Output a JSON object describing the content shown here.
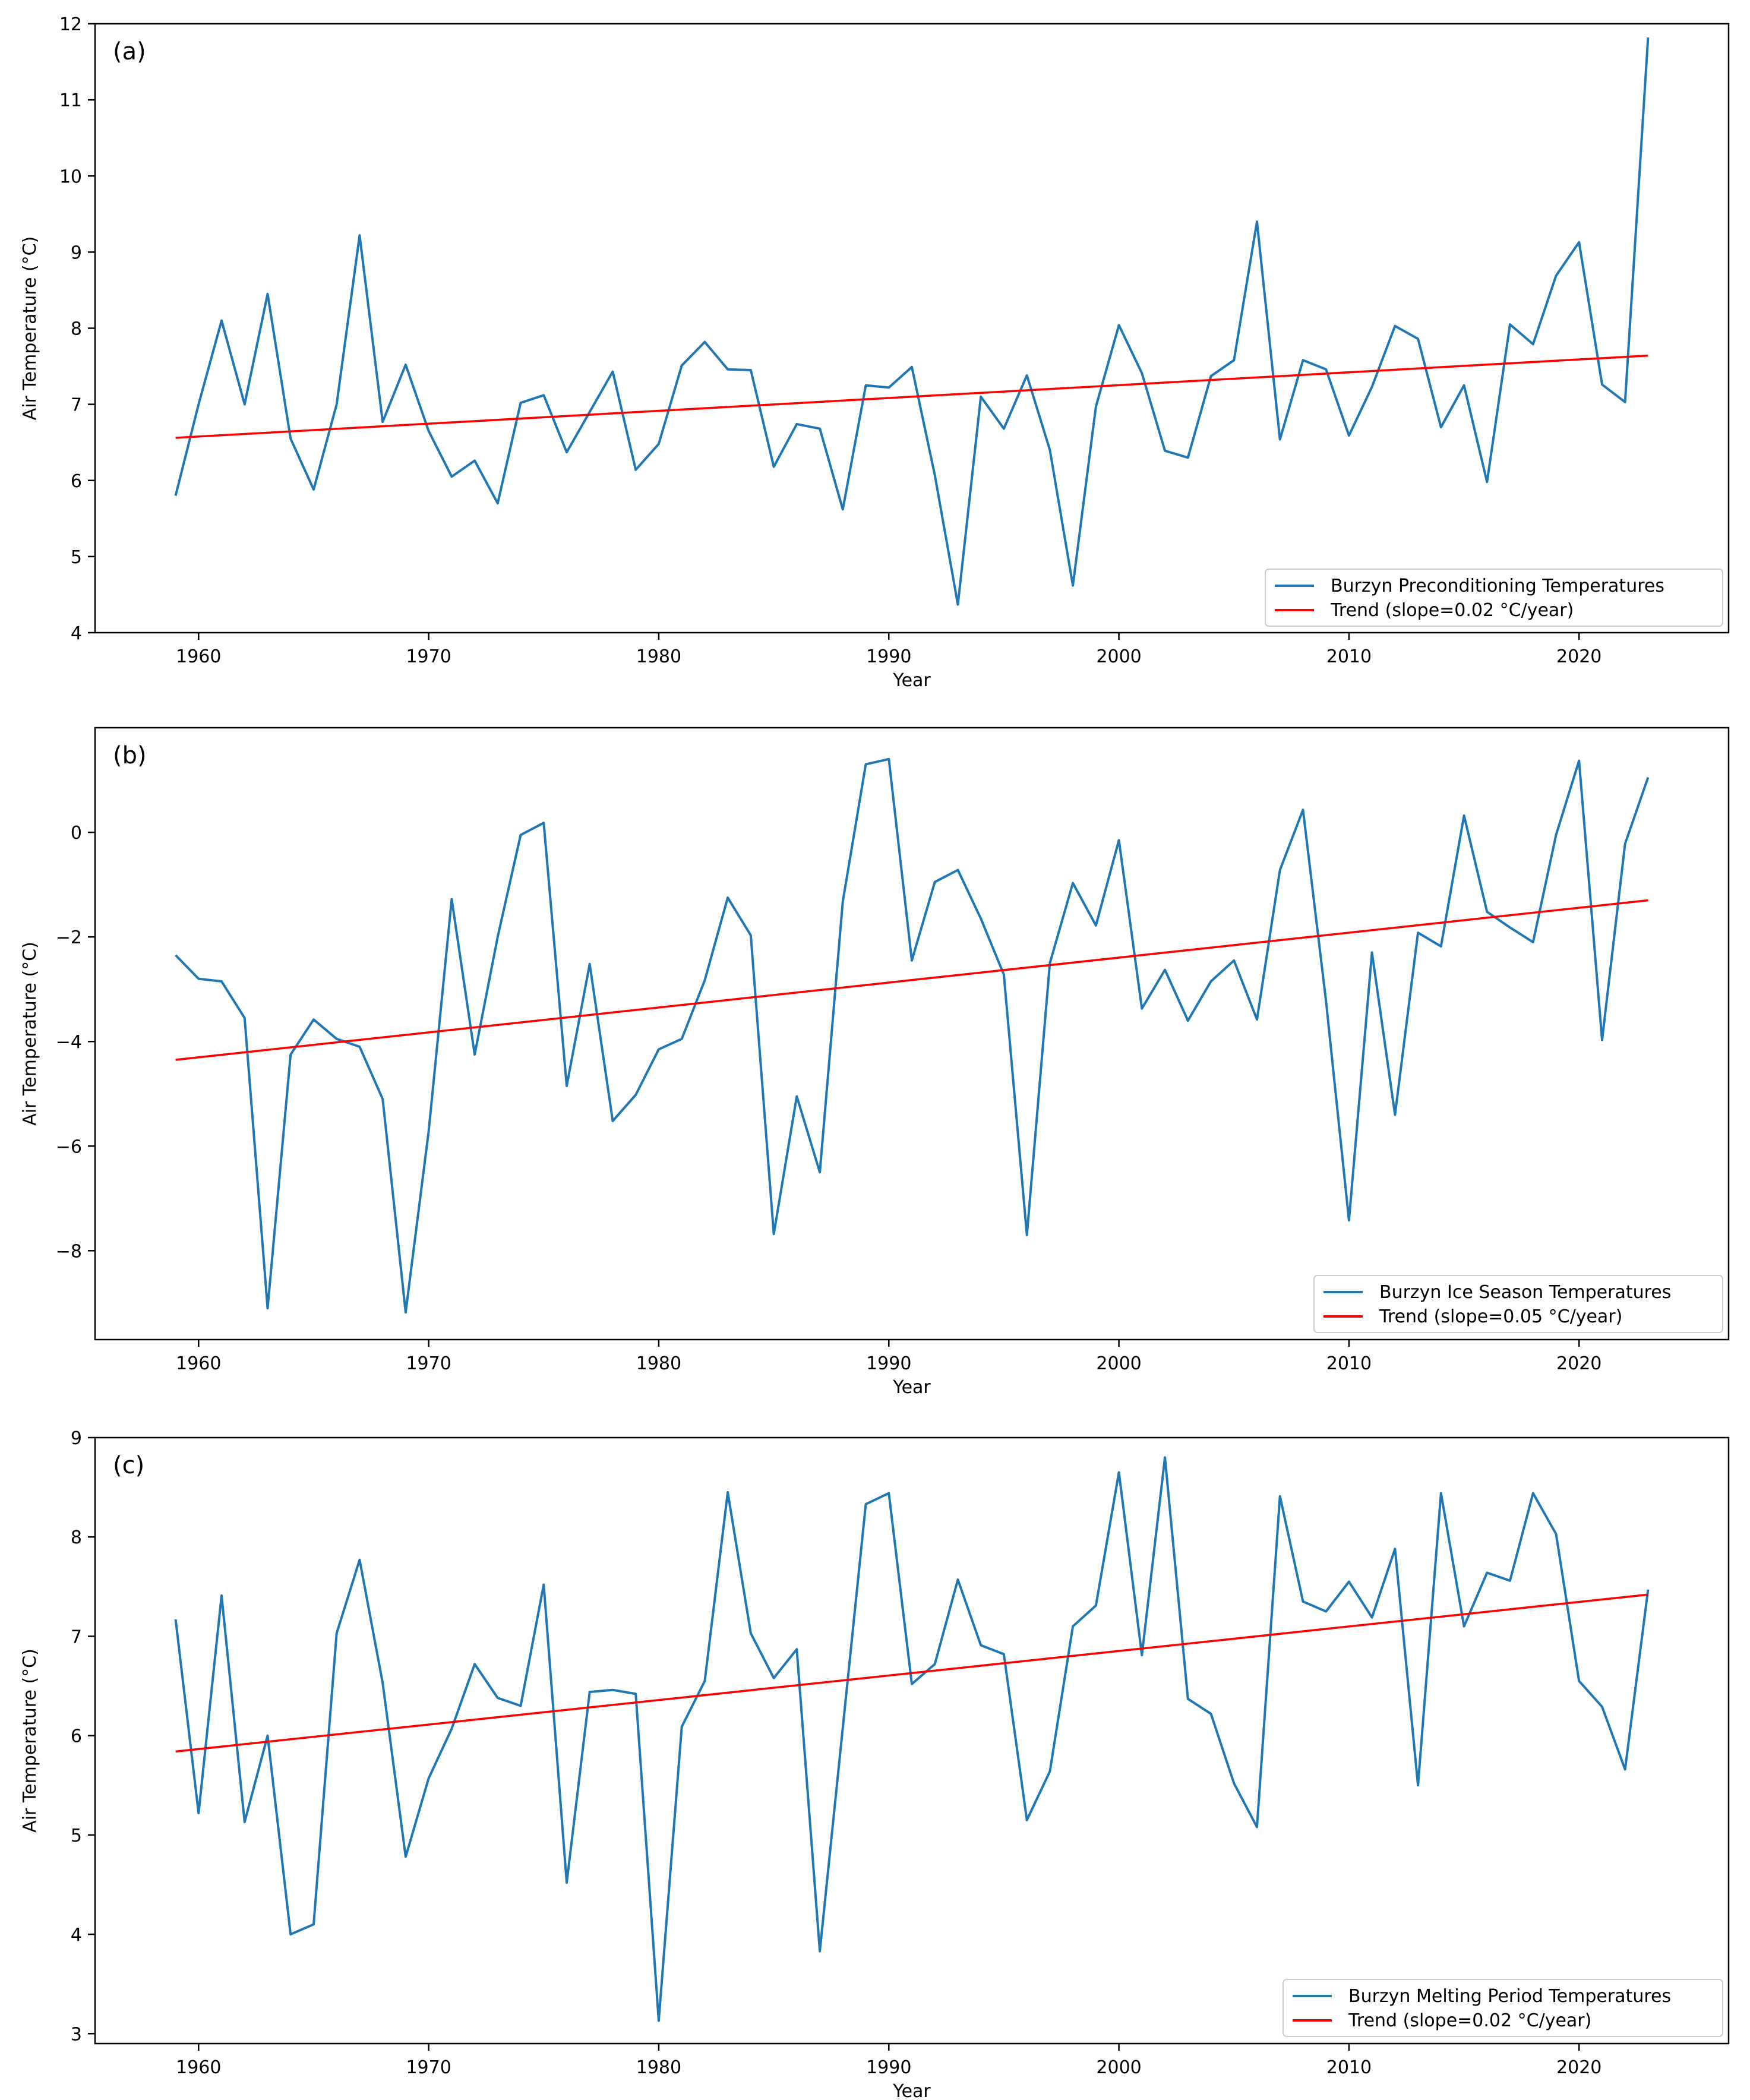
{
  "colors": {
    "series": "#1f77b4",
    "trend": "#ff0000",
    "axis": "#000000",
    "legend_border": "#cccccc"
  },
  "chart_data": [
    {
      "type": "line",
      "panel_label": "(a)",
      "xlabel": "Year",
      "ylabel": "Air Temperature (°C)",
      "xlim": [
        1955.5,
        2026.5
      ],
      "ylim": [
        4,
        12
      ],
      "xticks": [
        1960,
        1970,
        1980,
        1990,
        2000,
        2010,
        2020
      ],
      "yticks": [
        4,
        5,
        6,
        7,
        8,
        9,
        10,
        11,
        12
      ],
      "ytick_labels": [
        "4",
        "5",
        "6",
        "7",
        "8",
        "9",
        "10",
        "11",
        "12"
      ],
      "legend_position": "bottom-right",
      "series": [
        {
          "name": "Burzyn Preconditioning Temperatures",
          "x": [
            1959,
            1960,
            1961,
            1962,
            1963,
            1964,
            1965,
            1966,
            1967,
            1968,
            1969,
            1970,
            1971,
            1972,
            1973,
            1974,
            1975,
            1976,
            1977,
            1978,
            1979,
            1980,
            1981,
            1982,
            1983,
            1984,
            1985,
            1986,
            1987,
            1988,
            1989,
            1990,
            1991,
            1992,
            1993,
            1994,
            1995,
            1996,
            1997,
            1998,
            1999,
            2000,
            2001,
            2002,
            2003,
            2004,
            2005,
            2006,
            2007,
            2008,
            2009,
            2010,
            2011,
            2012,
            2013,
            2014,
            2015,
            2016,
            2017,
            2018,
            2019,
            2020,
            2021,
            2022,
            2023
          ],
          "values": [
            5.8,
            7.0,
            8.1,
            7.0,
            8.45,
            6.55,
            5.88,
            7.0,
            9.22,
            6.77,
            7.52,
            6.65,
            6.05,
            6.26,
            5.7,
            7.02,
            7.12,
            6.37,
            6.9,
            7.43,
            6.14,
            6.48,
            7.51,
            7.82,
            7.46,
            7.45,
            6.18,
            6.74,
            6.68,
            5.62,
            7.25,
            7.22,
            7.49,
            6.07,
            4.37,
            7.1,
            6.68,
            7.38,
            6.4,
            4.62,
            6.97,
            8.04,
            7.41,
            6.39,
            6.3,
            7.37,
            7.58,
            9.4,
            6.54,
            7.58,
            7.46,
            6.59,
            7.23,
            8.03,
            7.86,
            6.7,
            7.25,
            5.98,
            8.05,
            7.79,
            8.69,
            9.13,
            7.26,
            7.03,
            11.82
          ]
        },
        {
          "name": "Trend (slope=0.02 °C/year)",
          "x": [
            1959,
            2023
          ],
          "values": [
            6.56,
            7.64
          ]
        }
      ]
    },
    {
      "type": "line",
      "panel_label": "(b)",
      "xlabel": "Year",
      "ylabel": "Air Temperature (°C)",
      "xlim": [
        1955.5,
        2026.5
      ],
      "ylim": [
        -9.7,
        2.0
      ],
      "xticks": [
        1960,
        1970,
        1980,
        1990,
        2000,
        2010,
        2020
      ],
      "yticks": [
        -8,
        -6,
        -4,
        -2,
        0
      ],
      "ytick_labels": [
        "−8",
        "−6",
        "−4",
        "−2",
        "0"
      ],
      "legend_position": "bottom-right",
      "series": [
        {
          "name": "Burzyn Ice Season Temperatures",
          "x": [
            1959,
            1960,
            1961,
            1962,
            1963,
            1964,
            1965,
            1966,
            1967,
            1968,
            1969,
            1970,
            1971,
            1972,
            1973,
            1974,
            1975,
            1976,
            1977,
            1978,
            1979,
            1980,
            1981,
            1982,
            1983,
            1984,
            1985,
            1986,
            1987,
            1988,
            1989,
            1990,
            1991,
            1992,
            1993,
            1994,
            1995,
            1996,
            1997,
            1998,
            1999,
            2000,
            2001,
            2002,
            2003,
            2004,
            2005,
            2006,
            2007,
            2008,
            2009,
            2010,
            2011,
            2012,
            2013,
            2014,
            2015,
            2016,
            2017,
            2018,
            2019,
            2020,
            2021,
            2022,
            2023
          ],
          "values": [
            -2.35,
            -2.8,
            -2.85,
            -3.55,
            -9.1,
            -4.25,
            -3.58,
            -3.95,
            -4.1,
            -5.1,
            -9.18,
            -5.72,
            -1.28,
            -4.25,
            -2.0,
            -0.05,
            0.18,
            -4.85,
            -2.52,
            -5.52,
            -5.02,
            -4.15,
            -3.95,
            -2.83,
            -1.25,
            -1.97,
            -7.68,
            -5.05,
            -6.5,
            -1.32,
            1.3,
            1.4,
            -2.45,
            -0.95,
            -0.72,
            -1.65,
            -2.72,
            -7.7,
            -2.5,
            -0.97,
            -1.78,
            -0.15,
            -3.37,
            -2.63,
            -3.6,
            -2.85,
            -2.45,
            -3.58,
            -0.72,
            0.43,
            -3.22,
            -7.42,
            -2.3,
            -5.4,
            -1.92,
            -2.18,
            0.32,
            -1.52,
            -1.82,
            -2.1,
            -0.05,
            1.37,
            -3.97,
            -0.22,
            1.05
          ]
        },
        {
          "name": "Trend (slope=0.05 °C/year)",
          "x": [
            1959,
            2023
          ],
          "values": [
            -4.35,
            -1.3
          ]
        }
      ]
    },
    {
      "type": "line",
      "panel_label": "(c)",
      "xlabel": "Year",
      "ylabel": "Air Temperature (°C)",
      "xlim": [
        1955.5,
        2026.5
      ],
      "ylim": [
        2.9,
        9.0
      ],
      "xticks": [
        1960,
        1970,
        1980,
        1990,
        2000,
        2010,
        2020
      ],
      "yticks": [
        3,
        4,
        5,
        6,
        7,
        8,
        9
      ],
      "ytick_labels": [
        "3",
        "4",
        "5",
        "6",
        "7",
        "8",
        "9"
      ],
      "legend_position": "bottom-right",
      "series": [
        {
          "name": "Burzyn Melting Period Temperatures",
          "x": [
            1959,
            1960,
            1961,
            1962,
            1963,
            1964,
            1965,
            1966,
            1967,
            1968,
            1969,
            1970,
            1971,
            1972,
            1973,
            1974,
            1975,
            1976,
            1977,
            1978,
            1979,
            1980,
            1981,
            1982,
            1983,
            1984,
            1985,
            1986,
            1987,
            1988,
            1989,
            1990,
            1991,
            1992,
            1993,
            1994,
            1995,
            1996,
            1997,
            1998,
            1999,
            2000,
            2001,
            2002,
            2003,
            2004,
            2005,
            2006,
            2007,
            2008,
            2009,
            2010,
            2011,
            2012,
            2013,
            2014,
            2015,
            2016,
            2017,
            2018,
            2019,
            2020,
            2021,
            2022,
            2023
          ],
          "values": [
            7.17,
            5.22,
            7.41,
            5.13,
            6.0,
            4.0,
            4.1,
            7.03,
            7.77,
            6.53,
            4.78,
            5.57,
            6.07,
            6.72,
            6.38,
            6.3,
            7.52,
            4.52,
            6.44,
            6.46,
            6.42,
            3.13,
            6.09,
            6.55,
            8.45,
            7.03,
            6.58,
            6.87,
            3.83,
            6.08,
            8.33,
            8.44,
            6.52,
            6.72,
            7.57,
            6.91,
            6.82,
            5.15,
            5.64,
            7.1,
            7.31,
            8.65,
            6.81,
            8.8,
            6.37,
            6.22,
            5.52,
            5.08,
            8.41,
            7.35,
            7.25,
            7.55,
            7.19,
            7.88,
            5.5,
            8.44,
            7.1,
            7.64,
            7.56,
            8.44,
            8.03,
            6.55,
            6.29,
            5.66,
            7.47
          ]
        },
        {
          "name": "Trend (slope=0.02 °C/year)",
          "x": [
            1959,
            2023
          ],
          "values": [
            5.84,
            7.42
          ]
        }
      ]
    }
  ]
}
